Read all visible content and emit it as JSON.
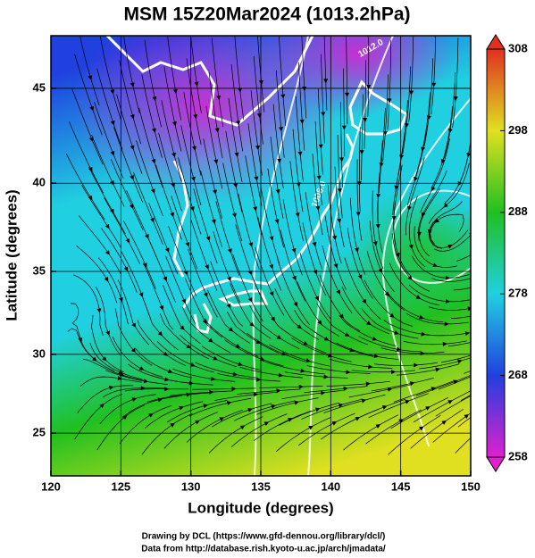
{
  "chart_data": {
    "type": "map",
    "title": "MSM 15Z20Mar2024 (1013.2hPa)",
    "x_label": "Longitude (degrees)",
    "y_label": "Latitude  (degrees)",
    "xlim": [
      120,
      150
    ],
    "ylim": [
      22.2,
      47.6
    ],
    "xticks": [
      120,
      125,
      130,
      135,
      140,
      145,
      150
    ],
    "yticks": [
      25,
      30,
      35,
      40,
      45
    ],
    "grid": true,
    "colorbar": {
      "lim": [
        258,
        308
      ],
      "ticks": [
        258,
        268,
        278,
        288,
        298,
        308
      ],
      "colors": [
        "#e020d0",
        "#2040e0",
        "#20d0e0",
        "#20c020",
        "#e0e020",
        "#e03020"
      ]
    },
    "annotations": [
      "1012.0",
      "1008.0"
    ],
    "footer": [
      "Drawing by DCL (https://www.gfd-dennou.org/library/dcl/)",
      "Data from http://database.rish.kyoto-u.ac.jp/arch/jmadata/"
    ]
  }
}
